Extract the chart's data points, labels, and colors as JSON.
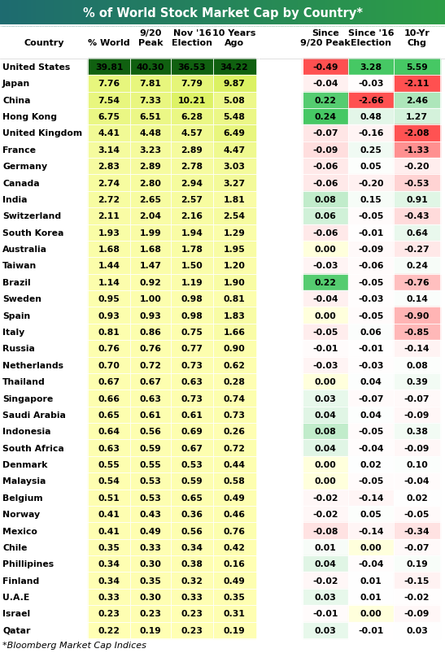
{
  "title": "% of World Stock Market Cap by Country*",
  "footnote": "*Bloomberg Market Cap Indices",
  "countries": [
    "United States",
    "Japan",
    "China",
    "Hong Kong",
    "United Kingdom",
    "France",
    "Germany",
    "Canada",
    "India",
    "Switzerland",
    "South Korea",
    "Australia",
    "Taiwan",
    "Brazil",
    "Sweden",
    "Spain",
    "Italy",
    "Russia",
    "Netherlands",
    "Thailand",
    "Singapore",
    "Saudi Arabia",
    "Indonesia",
    "South Africa",
    "Denmark",
    "Malaysia",
    "Belgium",
    "Norway",
    "Mexico",
    "Chile",
    "Phillipines",
    "Finland",
    "U.A.E",
    "Israel",
    "Qatar"
  ],
  "col1": [
    39.81,
    7.76,
    7.54,
    6.75,
    4.41,
    3.14,
    2.83,
    2.74,
    2.72,
    2.11,
    1.93,
    1.68,
    1.44,
    1.14,
    0.95,
    0.93,
    0.81,
    0.76,
    0.7,
    0.67,
    0.66,
    0.65,
    0.64,
    0.63,
    0.55,
    0.54,
    0.51,
    0.41,
    0.41,
    0.35,
    0.34,
    0.34,
    0.33,
    0.23,
    0.22
  ],
  "col2": [
    40.3,
    7.81,
    7.33,
    6.51,
    4.48,
    3.23,
    2.89,
    2.8,
    2.65,
    2.04,
    1.99,
    1.68,
    1.47,
    0.92,
    1.0,
    0.93,
    0.86,
    0.76,
    0.72,
    0.67,
    0.63,
    0.61,
    0.56,
    0.59,
    0.55,
    0.53,
    0.53,
    0.43,
    0.49,
    0.33,
    0.3,
    0.35,
    0.3,
    0.23,
    0.19
  ],
  "col3": [
    36.53,
    7.79,
    10.21,
    6.28,
    4.57,
    2.89,
    2.78,
    2.94,
    2.57,
    2.16,
    1.94,
    1.78,
    1.5,
    1.19,
    0.98,
    0.98,
    0.75,
    0.77,
    0.73,
    0.63,
    0.73,
    0.61,
    0.69,
    0.67,
    0.53,
    0.59,
    0.65,
    0.36,
    0.56,
    0.34,
    0.38,
    0.32,
    0.33,
    0.23,
    0.23
  ],
  "col4": [
    34.22,
    9.87,
    5.08,
    5.48,
    6.49,
    4.47,
    3.03,
    3.27,
    1.81,
    2.54,
    1.29,
    1.95,
    1.2,
    1.9,
    0.81,
    1.83,
    1.66,
    0.9,
    0.62,
    0.28,
    0.74,
    0.73,
    0.26,
    0.72,
    0.44,
    0.58,
    0.49,
    0.46,
    0.76,
    0.42,
    0.16,
    0.49,
    0.35,
    0.31,
    0.19
  ],
  "col5": [
    -0.49,
    -0.04,
    0.22,
    0.24,
    -0.07,
    -0.09,
    -0.06,
    -0.06,
    0.08,
    0.06,
    -0.06,
    0.0,
    -0.03,
    0.22,
    -0.04,
    0.0,
    -0.05,
    -0.01,
    -0.03,
    0.0,
    0.03,
    0.04,
    0.08,
    0.04,
    0.0,
    0.0,
    -0.02,
    -0.02,
    -0.08,
    0.01,
    0.04,
    -0.02,
    0.03,
    -0.01,
    0.03
  ],
  "col6": [
    3.28,
    -0.03,
    -2.66,
    0.48,
    -0.16,
    0.25,
    0.05,
    -0.2,
    0.15,
    -0.05,
    -0.01,
    -0.09,
    -0.06,
    -0.05,
    -0.03,
    -0.05,
    0.06,
    -0.01,
    -0.03,
    0.04,
    -0.07,
    0.04,
    -0.05,
    -0.04,
    0.02,
    -0.05,
    -0.14,
    0.05,
    -0.14,
    0.0,
    -0.04,
    0.01,
    0.01,
    0.0,
    -0.01
  ],
  "col7": [
    5.59,
    -2.11,
    2.46,
    1.27,
    -2.08,
    -1.33,
    -0.2,
    -0.53,
    0.91,
    -0.43,
    0.64,
    -0.27,
    0.24,
    -0.76,
    0.14,
    -0.9,
    -0.85,
    -0.14,
    0.08,
    0.39,
    -0.07,
    -0.09,
    0.38,
    -0.09,
    0.1,
    -0.04,
    0.02,
    -0.05,
    -0.34,
    -0.07,
    0.19,
    -0.15,
    -0.02,
    -0.09,
    0.03
  ],
  "title_color_left": "#1a5f6b",
  "title_color_right": "#2e9e45",
  "fig_width": 5.47,
  "fig_height": 8.04,
  "dpi": 100
}
